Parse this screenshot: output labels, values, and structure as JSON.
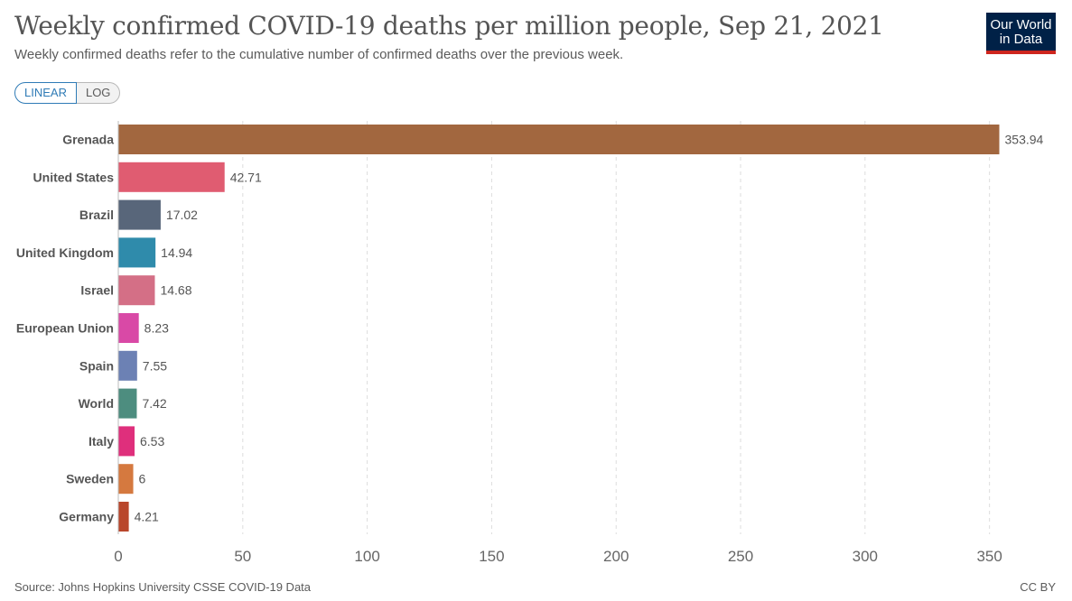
{
  "header": {
    "title": "Weekly confirmed COVID-19 deaths per million people, Sep 21, 2021",
    "subtitle": "Weekly confirmed deaths refer to the cumulative number of confirmed deaths over the previous week.",
    "logo_line1": "Our World",
    "logo_line2": "in Data"
  },
  "controls": {
    "linear_label": "LINEAR",
    "log_label": "LOG",
    "selected": "LINEAR"
  },
  "footer": {
    "source": "Source: Johns Hopkins University CSSE COVID-19 Data",
    "license": "CC BY"
  },
  "colors": {
    "logo_bg": "#002147",
    "logo_accent": "#ce261e",
    "toggle_active": "#2f7bb6"
  },
  "chart_data": {
    "type": "bar",
    "orientation": "horizontal",
    "title": "Weekly confirmed COVID-19 deaths per million people, Sep 21, 2021",
    "xlabel": "",
    "ylabel": "",
    "xlim": [
      0,
      360
    ],
    "x_ticks": [
      0,
      50,
      100,
      150,
      200,
      250,
      300,
      350
    ],
    "grid": "vertical dashed",
    "categories": [
      "Grenada",
      "United States",
      "Brazil",
      "United Kingdom",
      "Israel",
      "European Union",
      "Spain",
      "World",
      "Italy",
      "Sweden",
      "Germany"
    ],
    "values": [
      353.94,
      42.71,
      17.02,
      14.94,
      14.68,
      8.23,
      7.55,
      7.42,
      6.53,
      6,
      4.21
    ],
    "value_labels": [
      "353.94",
      "42.71",
      "17.02",
      "14.94",
      "14.68",
      "8.23",
      "7.55",
      "7.42",
      "6.53",
      "6",
      "4.21"
    ],
    "bar_colors": [
      "#a2673f",
      "#e05c71",
      "#58667a",
      "#2f8bab",
      "#d46f86",
      "#d949a6",
      "#6c81b4",
      "#4d8d7f",
      "#df2f7c",
      "#d5793f",
      "#b9462b"
    ]
  }
}
